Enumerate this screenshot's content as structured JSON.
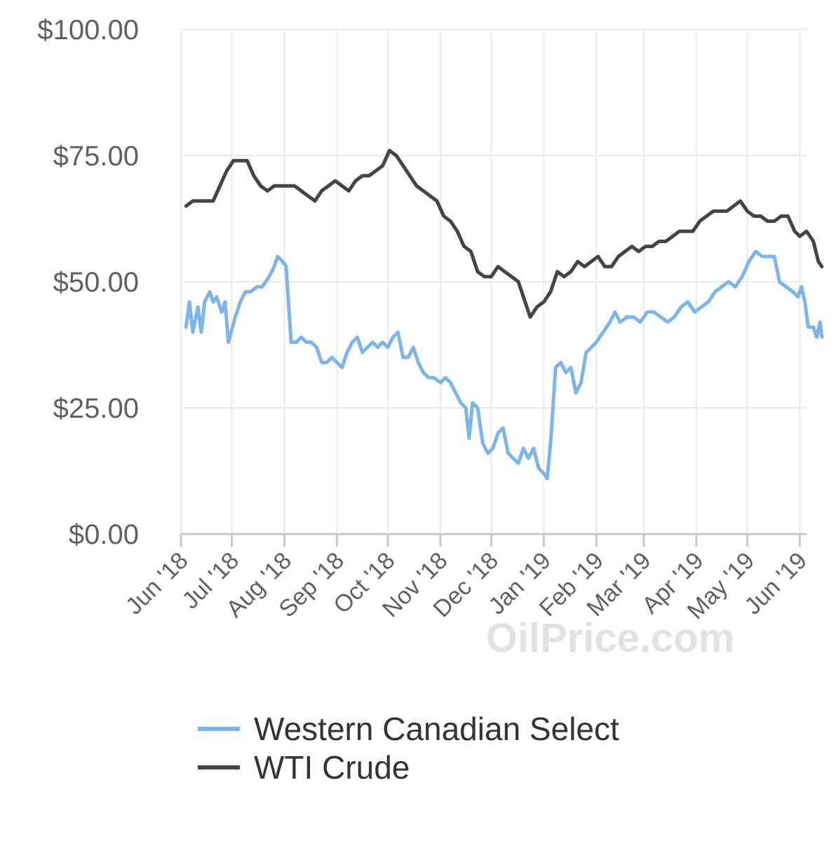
{
  "chart_data": {
    "type": "line",
    "title": "",
    "xlabel": "",
    "ylabel": "",
    "x_range": [
      "2018-06-01",
      "2019-06-05"
    ],
    "ylim": [
      0,
      100
    ],
    "y_ticks": [
      0,
      25,
      50,
      75,
      100
    ],
    "y_tick_labels": [
      "$0.00",
      "$25.00",
      "$50.00",
      "$75.00",
      "$100.00"
    ],
    "x_ticks": [
      {
        "date": "2018-06-01",
        "label": "Jun '18"
      },
      {
        "date": "2018-07-01",
        "label": "Jul '18"
      },
      {
        "date": "2018-08-01",
        "label": "Aug '18"
      },
      {
        "date": "2018-09-01",
        "label": "Sep '18"
      },
      {
        "date": "2018-10-01",
        "label": "Oct '18"
      },
      {
        "date": "2018-11-01",
        "label": "Nov '18"
      },
      {
        "date": "2018-12-01",
        "label": "Dec '18"
      },
      {
        "date": "2019-01-01",
        "label": "Jan '19"
      },
      {
        "date": "2019-02-01",
        "label": "Feb '19"
      },
      {
        "date": "2019-03-01",
        "label": "Mar '19"
      },
      {
        "date": "2019-04-01",
        "label": "Apr '19"
      },
      {
        "date": "2019-05-01",
        "label": "May '19"
      },
      {
        "date": "2019-06-01",
        "label": "Jun '19"
      }
    ],
    "grid": true,
    "legend_position": "bottom",
    "watermark": "OilPrice.com",
    "series": [
      {
        "name": "Western Canadian Select",
        "color": "#7cb5ec",
        "points": [
          [
            "2018-06-04",
            41
          ],
          [
            "2018-06-06",
            46
          ],
          [
            "2018-06-08",
            40
          ],
          [
            "2018-06-11",
            45
          ],
          [
            "2018-06-13",
            40
          ],
          [
            "2018-06-15",
            46
          ],
          [
            "2018-06-18",
            48
          ],
          [
            "2018-06-20",
            46
          ],
          [
            "2018-06-22",
            47
          ],
          [
            "2018-06-25",
            44
          ],
          [
            "2018-06-27",
            46
          ],
          [
            "2018-06-29",
            38
          ],
          [
            "2018-07-03",
            43
          ],
          [
            "2018-07-06",
            46
          ],
          [
            "2018-07-09",
            48
          ],
          [
            "2018-07-12",
            48
          ],
          [
            "2018-07-16",
            49
          ],
          [
            "2018-07-19",
            49
          ],
          [
            "2018-07-23",
            51
          ],
          [
            "2018-07-26",
            53
          ],
          [
            "2018-07-28",
            55
          ],
          [
            "2018-07-31",
            54
          ],
          [
            "2018-08-02",
            53
          ],
          [
            "2018-08-05",
            38
          ],
          [
            "2018-08-08",
            38
          ],
          [
            "2018-08-11",
            39
          ],
          [
            "2018-08-14",
            38
          ],
          [
            "2018-08-17",
            38
          ],
          [
            "2018-08-20",
            37
          ],
          [
            "2018-08-23",
            34
          ],
          [
            "2018-08-26",
            34
          ],
          [
            "2018-08-29",
            35
          ],
          [
            "2018-09-01",
            34
          ],
          [
            "2018-09-04",
            33
          ],
          [
            "2018-09-07",
            36
          ],
          [
            "2018-09-10",
            38
          ],
          [
            "2018-09-13",
            39
          ],
          [
            "2018-09-16",
            36
          ],
          [
            "2018-09-19",
            37
          ],
          [
            "2018-09-22",
            38
          ],
          [
            "2018-09-25",
            37
          ],
          [
            "2018-09-28",
            38
          ],
          [
            "2018-10-01",
            37
          ],
          [
            "2018-10-04",
            39
          ],
          [
            "2018-10-07",
            40
          ],
          [
            "2018-10-10",
            35
          ],
          [
            "2018-10-13",
            35
          ],
          [
            "2018-10-16",
            37
          ],
          [
            "2018-10-19",
            34
          ],
          [
            "2018-10-22",
            32
          ],
          [
            "2018-10-25",
            31
          ],
          [
            "2018-10-28",
            31
          ],
          [
            "2018-11-01",
            30
          ],
          [
            "2018-11-04",
            31
          ],
          [
            "2018-11-07",
            30
          ],
          [
            "2018-11-10",
            28
          ],
          [
            "2018-11-13",
            26
          ],
          [
            "2018-11-16",
            25
          ],
          [
            "2018-11-18",
            19
          ],
          [
            "2018-11-20",
            26
          ],
          [
            "2018-11-23",
            25
          ],
          [
            "2018-11-26",
            18
          ],
          [
            "2018-11-29",
            16
          ],
          [
            "2018-12-02",
            17
          ],
          [
            "2018-12-05",
            20
          ],
          [
            "2018-12-08",
            21
          ],
          [
            "2018-12-11",
            16
          ],
          [
            "2018-12-14",
            15
          ],
          [
            "2018-12-17",
            14
          ],
          [
            "2018-12-20",
            17
          ],
          [
            "2018-12-23",
            15
          ],
          [
            "2018-12-26",
            17
          ],
          [
            "2018-12-29",
            13
          ],
          [
            "2019-01-01",
            12
          ],
          [
            "2019-01-03",
            11
          ],
          [
            "2019-01-05",
            18
          ],
          [
            "2019-01-08",
            33
          ],
          [
            "2019-01-11",
            34
          ],
          [
            "2019-01-14",
            32
          ],
          [
            "2019-01-17",
            33
          ],
          [
            "2019-01-20",
            28
          ],
          [
            "2019-01-23",
            30
          ],
          [
            "2019-01-26",
            36
          ],
          [
            "2019-01-29",
            37
          ],
          [
            "2019-02-01",
            38
          ],
          [
            "2019-02-05",
            40
          ],
          [
            "2019-02-09",
            42
          ],
          [
            "2019-02-12",
            44
          ],
          [
            "2019-02-15",
            42
          ],
          [
            "2019-02-19",
            43
          ],
          [
            "2019-02-23",
            43
          ],
          [
            "2019-02-27",
            42
          ],
          [
            "2019-03-03",
            44
          ],
          [
            "2019-03-07",
            44
          ],
          [
            "2019-03-11",
            43
          ],
          [
            "2019-03-15",
            42
          ],
          [
            "2019-03-19",
            43
          ],
          [
            "2019-03-23",
            45
          ],
          [
            "2019-03-27",
            46
          ],
          [
            "2019-03-31",
            44
          ],
          [
            "2019-04-04",
            45
          ],
          [
            "2019-04-08",
            46
          ],
          [
            "2019-04-12",
            48
          ],
          [
            "2019-04-16",
            49
          ],
          [
            "2019-04-20",
            50
          ],
          [
            "2019-04-24",
            49
          ],
          [
            "2019-04-28",
            51
          ],
          [
            "2019-05-02",
            54
          ],
          [
            "2019-05-06",
            56
          ],
          [
            "2019-05-10",
            55
          ],
          [
            "2019-05-14",
            55
          ],
          [
            "2019-05-17",
            55
          ],
          [
            "2019-05-20",
            50
          ],
          [
            "2019-05-24",
            49
          ],
          [
            "2019-05-28",
            48
          ],
          [
            "2019-05-31",
            47
          ],
          [
            "2019-06-02",
            49
          ],
          [
            "2019-06-04",
            46
          ],
          [
            "2019-06-06",
            41
          ],
          [
            "2019-06-09",
            41
          ],
          [
            "2019-06-11",
            39
          ],
          [
            "2019-06-13",
            42
          ],
          [
            "2019-06-14",
            39
          ]
        ]
      },
      {
        "name": "WTI Crude",
        "color": "#434348",
        "points": [
          [
            "2018-06-04",
            65
          ],
          [
            "2018-06-08",
            66
          ],
          [
            "2018-06-12",
            66
          ],
          [
            "2018-06-16",
            66
          ],
          [
            "2018-06-20",
            66
          ],
          [
            "2018-06-24",
            69
          ],
          [
            "2018-06-28",
            72
          ],
          [
            "2018-07-02",
            74
          ],
          [
            "2018-07-06",
            74
          ],
          [
            "2018-07-10",
            74
          ],
          [
            "2018-07-14",
            71
          ],
          [
            "2018-07-18",
            69
          ],
          [
            "2018-07-22",
            68
          ],
          [
            "2018-07-26",
            69
          ],
          [
            "2018-07-30",
            69
          ],
          [
            "2018-08-03",
            69
          ],
          [
            "2018-08-07",
            69
          ],
          [
            "2018-08-11",
            68
          ],
          [
            "2018-08-15",
            67
          ],
          [
            "2018-08-19",
            66
          ],
          [
            "2018-08-23",
            68
          ],
          [
            "2018-08-27",
            69
          ],
          [
            "2018-08-31",
            70
          ],
          [
            "2018-09-04",
            69
          ],
          [
            "2018-09-08",
            68
          ],
          [
            "2018-09-12",
            70
          ],
          [
            "2018-09-16",
            71
          ],
          [
            "2018-09-20",
            71
          ],
          [
            "2018-09-24",
            72
          ],
          [
            "2018-09-28",
            73
          ],
          [
            "2018-10-02",
            76
          ],
          [
            "2018-10-06",
            75
          ],
          [
            "2018-10-10",
            73
          ],
          [
            "2018-10-14",
            71
          ],
          [
            "2018-10-18",
            69
          ],
          [
            "2018-10-22",
            68
          ],
          [
            "2018-10-26",
            67
          ],
          [
            "2018-10-30",
            66
          ],
          [
            "2018-11-03",
            63
          ],
          [
            "2018-11-07",
            62
          ],
          [
            "2018-11-11",
            60
          ],
          [
            "2018-11-15",
            57
          ],
          [
            "2018-11-19",
            56
          ],
          [
            "2018-11-23",
            52
          ],
          [
            "2018-11-27",
            51
          ],
          [
            "2018-12-01",
            51
          ],
          [
            "2018-12-05",
            53
          ],
          [
            "2018-12-09",
            52
          ],
          [
            "2018-12-13",
            51
          ],
          [
            "2018-12-17",
            50
          ],
          [
            "2018-12-21",
            46
          ],
          [
            "2018-12-24",
            43
          ],
          [
            "2018-12-28",
            45
          ],
          [
            "2019-01-01",
            46
          ],
          [
            "2019-01-05",
            48
          ],
          [
            "2019-01-09",
            52
          ],
          [
            "2019-01-13",
            51
          ],
          [
            "2019-01-17",
            52
          ],
          [
            "2019-01-21",
            54
          ],
          [
            "2019-01-25",
            53
          ],
          [
            "2019-01-29",
            54
          ],
          [
            "2019-02-02",
            55
          ],
          [
            "2019-02-06",
            53
          ],
          [
            "2019-02-10",
            53
          ],
          [
            "2019-02-14",
            55
          ],
          [
            "2019-02-18",
            56
          ],
          [
            "2019-02-22",
            57
          ],
          [
            "2019-02-26",
            56
          ],
          [
            "2019-03-02",
            57
          ],
          [
            "2019-03-06",
            57
          ],
          [
            "2019-03-10",
            58
          ],
          [
            "2019-03-14",
            58
          ],
          [
            "2019-03-18",
            59
          ],
          [
            "2019-03-22",
            60
          ],
          [
            "2019-03-26",
            60
          ],
          [
            "2019-03-30",
            60
          ],
          [
            "2019-04-03",
            62
          ],
          [
            "2019-04-07",
            63
          ],
          [
            "2019-04-11",
            64
          ],
          [
            "2019-04-15",
            64
          ],
          [
            "2019-04-19",
            64
          ],
          [
            "2019-04-23",
            65
          ],
          [
            "2019-04-27",
            66
          ],
          [
            "2019-05-01",
            64
          ],
          [
            "2019-05-05",
            63
          ],
          [
            "2019-05-09",
            63
          ],
          [
            "2019-05-13",
            62
          ],
          [
            "2019-05-17",
            62
          ],
          [
            "2019-05-21",
            63
          ],
          [
            "2019-05-25",
            63
          ],
          [
            "2019-05-29",
            60
          ],
          [
            "2019-06-01",
            59
          ],
          [
            "2019-06-05",
            60
          ],
          [
            "2019-06-09",
            58
          ],
          [
            "2019-06-12",
            54
          ],
          [
            "2019-06-14",
            53
          ]
        ]
      }
    ]
  }
}
